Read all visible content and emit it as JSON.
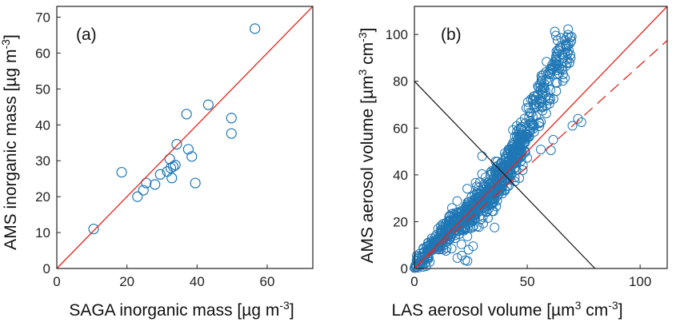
{
  "chart_data": [
    {
      "type": "scatter",
      "panel_label": "(a)",
      "xlabel": "SAGA inorganic mass [µg  m",
      "xlabel_sup": "-3",
      "xlabel_tail": "]",
      "ylabel": "AMS inorganic mass [µg  m",
      "ylabel_sup": "-3",
      "ylabel_tail": "]",
      "xlim": [
        0,
        73
      ],
      "ylim": [
        0,
        73
      ],
      "xticks": [
        0,
        20,
        40,
        60
      ],
      "yticks": [
        0,
        10,
        20,
        30,
        40,
        50,
        60,
        70
      ],
      "grid": false,
      "marker_color": "#1f77b4",
      "reference_line": {
        "style": "1:1",
        "color": "#e8221b"
      },
      "points": [
        [
          10.5,
          11.0
        ],
        [
          18.5,
          26.8
        ],
        [
          23.0,
          20.0
        ],
        [
          24.7,
          21.8
        ],
        [
          25.5,
          23.8
        ],
        [
          28.0,
          23.4
        ],
        [
          29.5,
          26.2
        ],
        [
          31.5,
          27.0
        ],
        [
          32.2,
          30.5
        ],
        [
          32.5,
          28.0
        ],
        [
          33.2,
          28.4
        ],
        [
          33.8,
          28.8
        ],
        [
          34.2,
          34.6
        ],
        [
          32.8,
          25.2
        ],
        [
          37.0,
          43.0
        ],
        [
          37.5,
          33.2
        ],
        [
          38.5,
          31.2
        ],
        [
          39.5,
          23.8
        ],
        [
          43.2,
          45.6
        ],
        [
          49.8,
          41.9
        ],
        [
          49.8,
          37.6
        ],
        [
          56.5,
          66.8
        ]
      ]
    },
    {
      "type": "scatter",
      "panel_label": "(b)",
      "xlabel": "LAS aerosol volume [µm",
      "xlabel_sup": "3",
      "xlabel_mid": " cm",
      "xlabel_sup2": "-3",
      "xlabel_tail": "]",
      "ylabel": "AMS aerosol volume [µm",
      "ylabel_sup": "3",
      "ylabel_mid": " cm",
      "ylabel_sup2": "-3",
      "ylabel_tail": "]",
      "xlim": [
        0,
        112
      ],
      "ylim": [
        0,
        112
      ],
      "xticks": [
        0,
        50,
        100
      ],
      "yticks": [
        0,
        20,
        40,
        60,
        80,
        100
      ],
      "grid": false,
      "marker_color": "#1f77b4",
      "reference_lines": [
        {
          "style": "1:1",
          "color": "#e8221b"
        },
        {
          "style": "dashed fit",
          "slope": 0.87,
          "color": "#e8221b"
        },
        {
          "style": "x + y = 80",
          "color": "#111111"
        }
      ],
      "trend": {
        "x": [
          0,
          5,
          10,
          15,
          20,
          25,
          30,
          35,
          40,
          45,
          50,
          55,
          60,
          65,
          70
        ],
        "y": [
          0,
          6,
          12,
          16,
          20,
          24,
          29,
          34,
          40,
          49,
          60,
          72,
          82,
          92,
          100
        ]
      },
      "outliers": [
        [
          21.0,
          5.5
        ],
        [
          22.5,
          3.5
        ],
        [
          23.5,
          3.2
        ],
        [
          19.0,
          4.5
        ],
        [
          24.0,
          8.0
        ],
        [
          26.0,
          9.5
        ],
        [
          35.5,
          17.5
        ],
        [
          30.0,
          48.0
        ],
        [
          70.0,
          61.0
        ],
        [
          72.5,
          64.0
        ],
        [
          61.5,
          55.0
        ],
        [
          48.0,
          42.0
        ],
        [
          14.0,
          7.5
        ],
        [
          16.5,
          8.5
        ],
        [
          74.0,
          62.5
        ],
        [
          60.5,
          50.5
        ]
      ],
      "n_points": 900,
      "seed": 7
    }
  ]
}
